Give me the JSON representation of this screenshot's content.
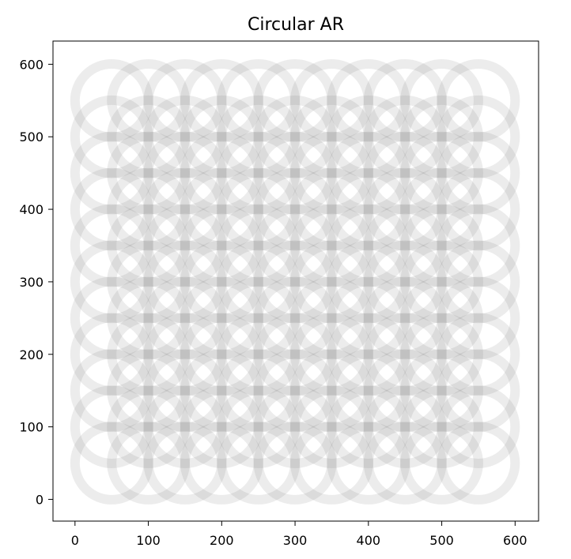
{
  "chart_data": {
    "type": "scatter",
    "title": "Circular AR",
    "xlabel": "",
    "ylabel": "",
    "xlim": [
      -30,
      632
    ],
    "ylim": [
      -30,
      632
    ],
    "xticks": [
      0,
      100,
      200,
      300,
      400,
      500,
      600
    ],
    "yticks": [
      0,
      100,
      200,
      300,
      400,
      500,
      600
    ],
    "grid": false,
    "marker": "ring",
    "marker_color": "#808080",
    "marker_alpha": 0.15,
    "ring_radius": 50,
    "ring_width": 12,
    "series": [
      {
        "x": [
          50,
          100,
          150,
          200,
          250,
          300,
          350,
          400,
          450,
          500,
          550
        ],
        "y": [
          50,
          100,
          150,
          200,
          250,
          300,
          350,
          400,
          450,
          500,
          550
        ],
        "layout": "grid"
      }
    ]
  }
}
